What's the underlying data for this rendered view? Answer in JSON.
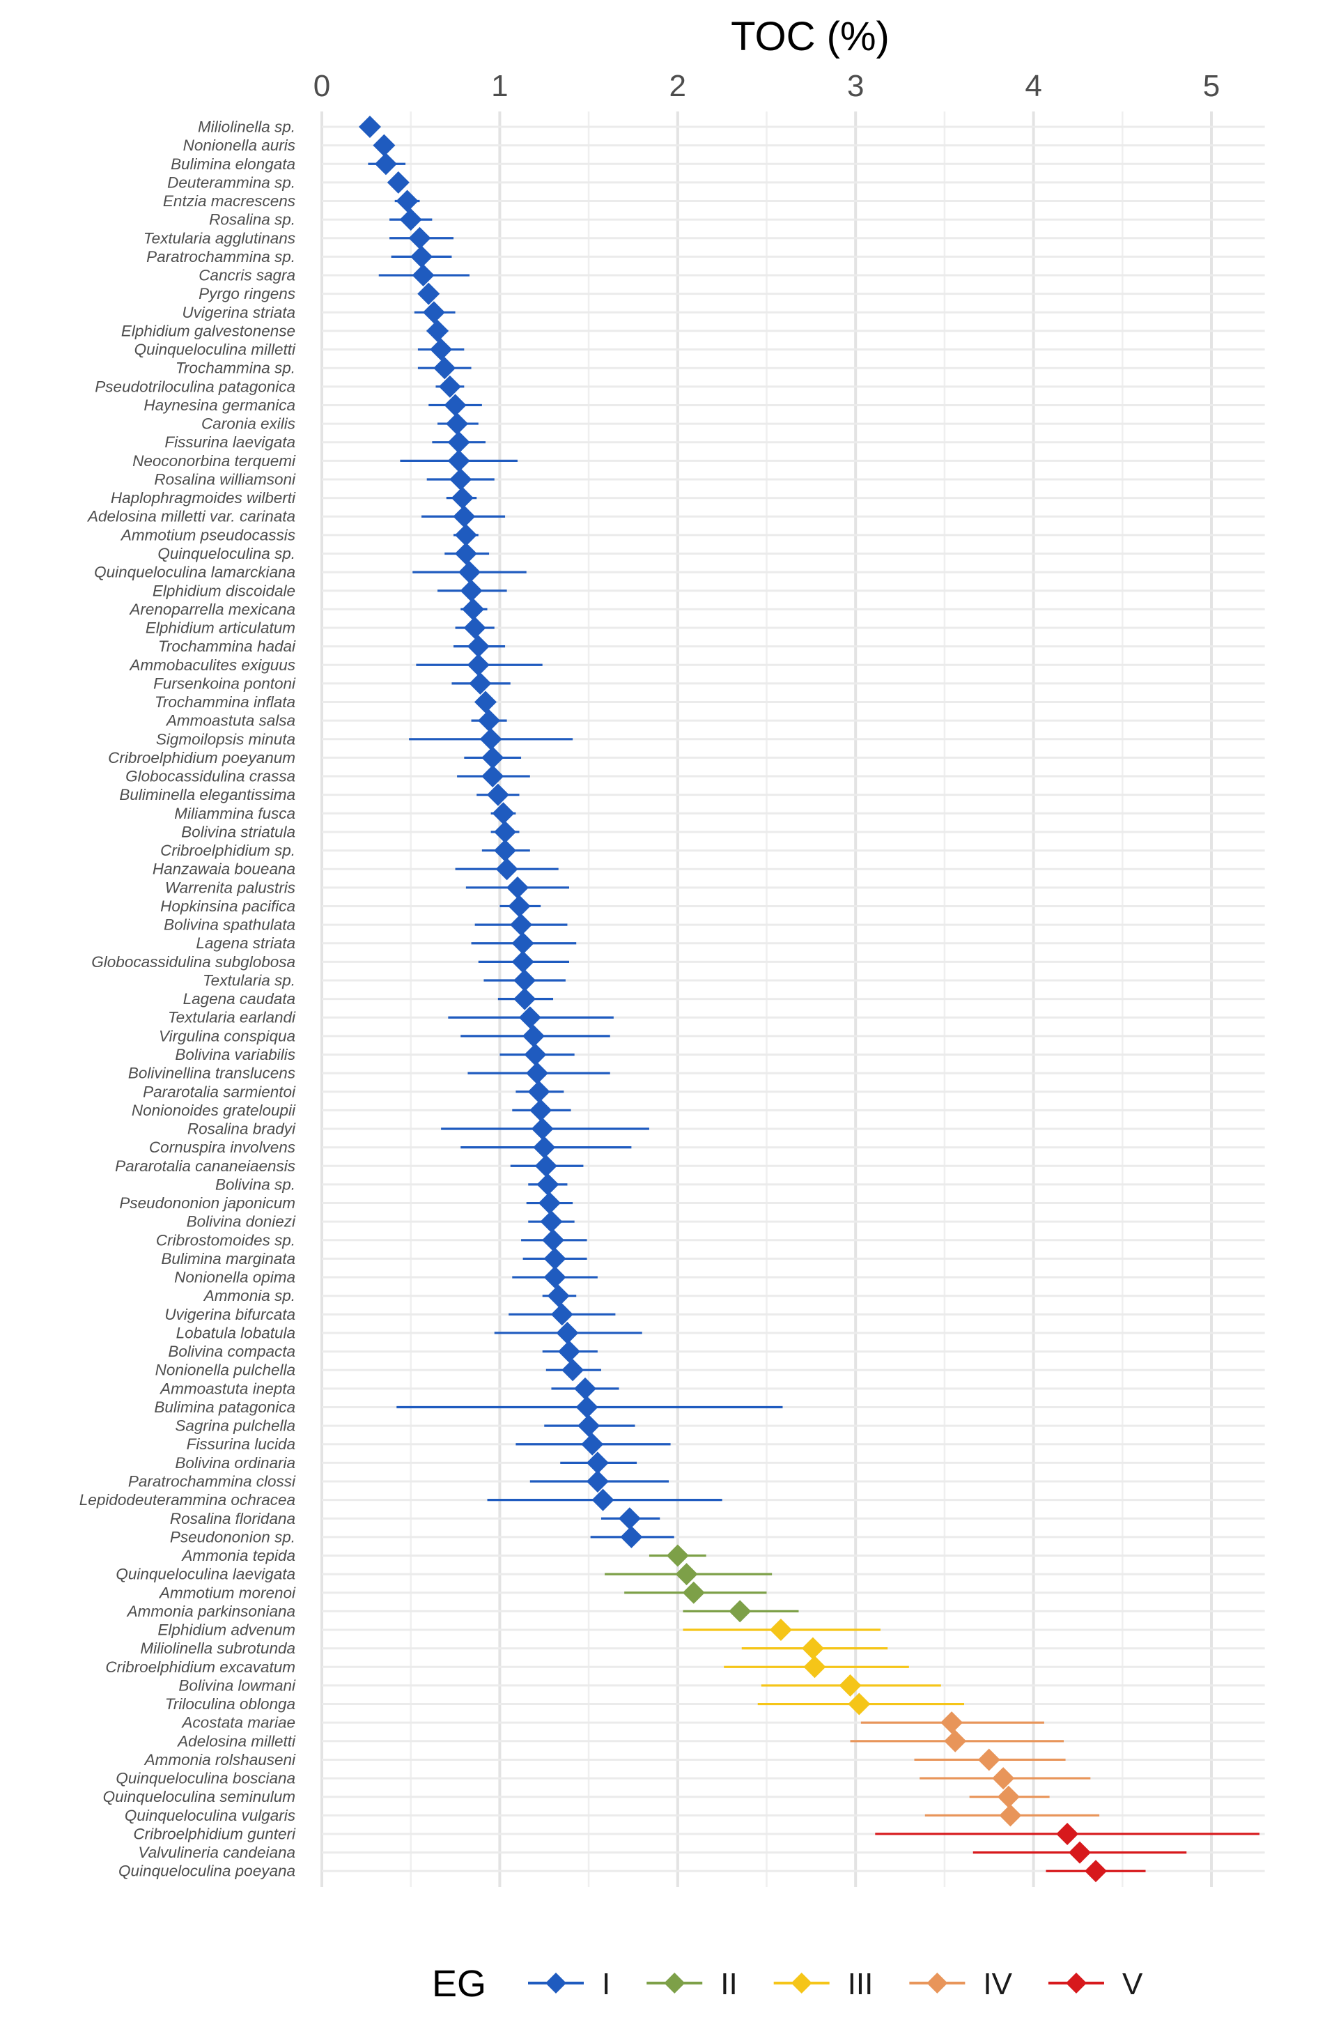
{
  "chart_data": {
    "type": "scatter",
    "title": "",
    "xlabel": "TOC (%)",
    "ylabel": "",
    "xlim": [
      0,
      5.3
    ],
    "x_ticks": [
      "0",
      "1",
      "2",
      "3",
      "4",
      "5"
    ],
    "grid": true,
    "error_bars": true,
    "legend": {
      "title": "EG",
      "placement": "bottom",
      "entries": [
        "I",
        "II",
        "III",
        "IV",
        "V"
      ]
    },
    "group_colors": {
      "I": "#1f5bbf",
      "II": "#7da048",
      "III": "#f5c518",
      "IV": "#e8955a",
      "V": "#d7191c"
    },
    "points": [
      {
        "species": "Miliolinella sp.",
        "x": 0.27,
        "lo": 0.27,
        "hi": 0.27,
        "group": "I"
      },
      {
        "species": "Nonionella auris",
        "x": 0.35,
        "lo": 0.3,
        "hi": 0.4,
        "group": "I"
      },
      {
        "species": "Bulimina elongata",
        "x": 0.36,
        "lo": 0.26,
        "hi": 0.47,
        "group": "I"
      },
      {
        "species": "Deuterammina sp.",
        "x": 0.43,
        "lo": 0.39,
        "hi": 0.47,
        "group": "I"
      },
      {
        "species": "Entzia macrescens",
        "x": 0.48,
        "lo": 0.41,
        "hi": 0.55,
        "group": "I"
      },
      {
        "species": "Rosalina sp.",
        "x": 0.5,
        "lo": 0.38,
        "hi": 0.62,
        "group": "I"
      },
      {
        "species": "Textularia agglutinans",
        "x": 0.55,
        "lo": 0.38,
        "hi": 0.74,
        "group": "I"
      },
      {
        "species": "Paratrochammina sp.",
        "x": 0.56,
        "lo": 0.39,
        "hi": 0.73,
        "group": "I"
      },
      {
        "species": "Cancris sagra",
        "x": 0.57,
        "lo": 0.32,
        "hi": 0.83,
        "group": "I"
      },
      {
        "species": "Pyrgo ringens",
        "x": 0.6,
        "lo": 0.6,
        "hi": 0.6,
        "group": "I"
      },
      {
        "species": "Uvigerina striata",
        "x": 0.63,
        "lo": 0.52,
        "hi": 0.75,
        "group": "I"
      },
      {
        "species": "Elphidium galvestonense",
        "x": 0.65,
        "lo": 0.59,
        "hi": 0.71,
        "group": "I"
      },
      {
        "species": "Quinqueloculina milletti",
        "x": 0.67,
        "lo": 0.54,
        "hi": 0.8,
        "group": "I"
      },
      {
        "species": "Trochammina sp.",
        "x": 0.69,
        "lo": 0.54,
        "hi": 0.84,
        "group": "I"
      },
      {
        "species": "Pseudotriloculina patagonica",
        "x": 0.72,
        "lo": 0.64,
        "hi": 0.8,
        "group": "I"
      },
      {
        "species": "Haynesina germanica",
        "x": 0.75,
        "lo": 0.6,
        "hi": 0.9,
        "group": "I"
      },
      {
        "species": "Caronia exilis",
        "x": 0.76,
        "lo": 0.65,
        "hi": 0.88,
        "group": "I"
      },
      {
        "species": "Fissurina laevigata",
        "x": 0.77,
        "lo": 0.62,
        "hi": 0.92,
        "group": "I"
      },
      {
        "species": "Neoconorbina terquemi",
        "x": 0.77,
        "lo": 0.44,
        "hi": 1.1,
        "group": "I"
      },
      {
        "species": "Rosalina williamsoni",
        "x": 0.78,
        "lo": 0.59,
        "hi": 0.97,
        "group": "I"
      },
      {
        "species": "Haplophragmoides wilberti",
        "x": 0.79,
        "lo": 0.7,
        "hi": 0.87,
        "group": "I"
      },
      {
        "species": "Adelosina milletti var. carinata",
        "x": 0.8,
        "lo": 0.56,
        "hi": 1.03,
        "group": "I"
      },
      {
        "species": "Ammotium pseudocassis",
        "x": 0.81,
        "lo": 0.74,
        "hi": 0.88,
        "group": "I"
      },
      {
        "species": "Quinqueloculina sp.",
        "x": 0.81,
        "lo": 0.69,
        "hi": 0.94,
        "group": "I"
      },
      {
        "species": "Quinqueloculina lamarckiana",
        "x": 0.83,
        "lo": 0.51,
        "hi": 1.15,
        "group": "I"
      },
      {
        "species": "Elphidium discoidale",
        "x": 0.84,
        "lo": 0.65,
        "hi": 1.04,
        "group": "I"
      },
      {
        "species": "Arenoparrella mexicana",
        "x": 0.85,
        "lo": 0.78,
        "hi": 0.93,
        "group": "I"
      },
      {
        "species": "Elphidium articulatum",
        "x": 0.86,
        "lo": 0.75,
        "hi": 0.97,
        "group": "I"
      },
      {
        "species": "Trochammina hadai",
        "x": 0.88,
        "lo": 0.74,
        "hi": 1.03,
        "group": "I"
      },
      {
        "species": "Ammobaculites exiguus",
        "x": 0.88,
        "lo": 0.53,
        "hi": 1.24,
        "group": "I"
      },
      {
        "species": "Fursenkoina pontoni",
        "x": 0.89,
        "lo": 0.73,
        "hi": 1.06,
        "group": "I"
      },
      {
        "species": "Trochammina inflata",
        "x": 0.92,
        "lo": 0.87,
        "hi": 0.97,
        "group": "I"
      },
      {
        "species": "Ammoastuta salsa",
        "x": 0.94,
        "lo": 0.84,
        "hi": 1.04,
        "group": "I"
      },
      {
        "species": "Sigmoilopsis minuta",
        "x": 0.95,
        "lo": 0.49,
        "hi": 1.41,
        "group": "I"
      },
      {
        "species": "Cribroelphidium poeyanum",
        "x": 0.96,
        "lo": 0.8,
        "hi": 1.12,
        "group": "I"
      },
      {
        "species": "Globocassidulina crassa",
        "x": 0.96,
        "lo": 0.76,
        "hi": 1.17,
        "group": "I"
      },
      {
        "species": "Buliminella elegantissima",
        "x": 0.99,
        "lo": 0.87,
        "hi": 1.11,
        "group": "I"
      },
      {
        "species": "Miliammina fusca",
        "x": 1.02,
        "lo": 0.95,
        "hi": 1.09,
        "group": "I"
      },
      {
        "species": "Bolivina striatula",
        "x": 1.03,
        "lo": 0.95,
        "hi": 1.11,
        "group": "I"
      },
      {
        "species": "Cribroelphidium sp.",
        "x": 1.03,
        "lo": 0.9,
        "hi": 1.17,
        "group": "I"
      },
      {
        "species": "Hanzawaia boueana",
        "x": 1.04,
        "lo": 0.75,
        "hi": 1.33,
        "group": "I"
      },
      {
        "species": "Warrenita palustris",
        "x": 1.1,
        "lo": 0.81,
        "hi": 1.39,
        "group": "I"
      },
      {
        "species": "Hopkinsina pacifica",
        "x": 1.11,
        "lo": 1.0,
        "hi": 1.23,
        "group": "I"
      },
      {
        "species": "Bolivina spathulata",
        "x": 1.12,
        "lo": 0.86,
        "hi": 1.38,
        "group": "I"
      },
      {
        "species": "Lagena striata",
        "x": 1.13,
        "lo": 0.84,
        "hi": 1.43,
        "group": "I"
      },
      {
        "species": "Globocassidulina subglobosa",
        "x": 1.13,
        "lo": 0.88,
        "hi": 1.39,
        "group": "I"
      },
      {
        "species": "Textularia sp.",
        "x": 1.14,
        "lo": 0.91,
        "hi": 1.37,
        "group": "I"
      },
      {
        "species": "Lagena caudata",
        "x": 1.14,
        "lo": 0.99,
        "hi": 1.3,
        "group": "I"
      },
      {
        "species": "Textularia earlandi",
        "x": 1.17,
        "lo": 0.71,
        "hi": 1.64,
        "group": "I"
      },
      {
        "species": "Virgulina conspiqua",
        "x": 1.19,
        "lo": 0.78,
        "hi": 1.62,
        "group": "I"
      },
      {
        "species": "Bolivina variabilis",
        "x": 1.2,
        "lo": 1.0,
        "hi": 1.42,
        "group": "I"
      },
      {
        "species": "Bolivinellina translucens",
        "x": 1.21,
        "lo": 0.82,
        "hi": 1.62,
        "group": "I"
      },
      {
        "species": "Pararotalia sarmientoi",
        "x": 1.22,
        "lo": 1.09,
        "hi": 1.36,
        "group": "I"
      },
      {
        "species": "Nonionoides grateloupii",
        "x": 1.23,
        "lo": 1.07,
        "hi": 1.4,
        "group": "I"
      },
      {
        "species": "Rosalina bradyi",
        "x": 1.24,
        "lo": 0.67,
        "hi": 1.84,
        "group": "I"
      },
      {
        "species": "Cornuspira involvens",
        "x": 1.25,
        "lo": 0.78,
        "hi": 1.74,
        "group": "I"
      },
      {
        "species": "Pararotalia cananeiaensis",
        "x": 1.26,
        "lo": 1.06,
        "hi": 1.47,
        "group": "I"
      },
      {
        "species": "Bolivina sp.",
        "x": 1.27,
        "lo": 1.16,
        "hi": 1.38,
        "group": "I"
      },
      {
        "species": "Pseudononion japonicum",
        "x": 1.28,
        "lo": 1.15,
        "hi": 1.41,
        "group": "I"
      },
      {
        "species": "Bolivina doniezi",
        "x": 1.29,
        "lo": 1.16,
        "hi": 1.42,
        "group": "I"
      },
      {
        "species": "Cribrostomoides sp.",
        "x": 1.3,
        "lo": 1.12,
        "hi": 1.49,
        "group": "I"
      },
      {
        "species": "Bulimina marginata",
        "x": 1.31,
        "lo": 1.13,
        "hi": 1.49,
        "group": "I"
      },
      {
        "species": "Nonionella opima",
        "x": 1.31,
        "lo": 1.07,
        "hi": 1.55,
        "group": "I"
      },
      {
        "species": "Ammonia sp.",
        "x": 1.33,
        "lo": 1.24,
        "hi": 1.43,
        "group": "I"
      },
      {
        "species": "Uvigerina bifurcata",
        "x": 1.35,
        "lo": 1.05,
        "hi": 1.65,
        "group": "I"
      },
      {
        "species": "Lobatula lobatula",
        "x": 1.38,
        "lo": 0.97,
        "hi": 1.8,
        "group": "I"
      },
      {
        "species": "Bolivina compacta",
        "x": 1.39,
        "lo": 1.24,
        "hi": 1.55,
        "group": "I"
      },
      {
        "species": "Nonionella pulchella",
        "x": 1.41,
        "lo": 1.26,
        "hi": 1.57,
        "group": "I"
      },
      {
        "species": "Ammoastuta inepta",
        "x": 1.48,
        "lo": 1.29,
        "hi": 1.67,
        "group": "I"
      },
      {
        "species": "Bulimina patagonica",
        "x": 1.49,
        "lo": 0.42,
        "hi": 2.59,
        "group": "I"
      },
      {
        "species": "Sagrina pulchella",
        "x": 1.5,
        "lo": 1.25,
        "hi": 1.76,
        "group": "I"
      },
      {
        "species": "Fissurina lucida",
        "x": 1.52,
        "lo": 1.09,
        "hi": 1.96,
        "group": "I"
      },
      {
        "species": "Bolivina ordinaria",
        "x": 1.55,
        "lo": 1.34,
        "hi": 1.77,
        "group": "I"
      },
      {
        "species": "Paratrochammina clossi",
        "x": 1.55,
        "lo": 1.17,
        "hi": 1.95,
        "group": "I"
      },
      {
        "species": "Lepidodeuterammina ochracea",
        "x": 1.58,
        "lo": 0.93,
        "hi": 2.25,
        "group": "I"
      },
      {
        "species": "Rosalina floridana",
        "x": 1.73,
        "lo": 1.57,
        "hi": 1.9,
        "group": "I"
      },
      {
        "species": "Pseudononion sp.",
        "x": 1.74,
        "lo": 1.51,
        "hi": 1.98,
        "group": "I"
      },
      {
        "species": "Ammonia tepida",
        "x": 2.0,
        "lo": 1.84,
        "hi": 2.16,
        "group": "II"
      },
      {
        "species": "Quinqueloculina laevigata",
        "x": 2.05,
        "lo": 1.59,
        "hi": 2.53,
        "group": "II"
      },
      {
        "species": "Ammotium morenoi",
        "x": 2.09,
        "lo": 1.7,
        "hi": 2.5,
        "group": "II"
      },
      {
        "species": "Ammonia parkinsoniana",
        "x": 2.35,
        "lo": 2.03,
        "hi": 2.68,
        "group": "II"
      },
      {
        "species": "Elphidium advenum",
        "x": 2.58,
        "lo": 2.03,
        "hi": 3.14,
        "group": "III"
      },
      {
        "species": "Miliolinella subrotunda",
        "x": 2.76,
        "lo": 2.36,
        "hi": 3.18,
        "group": "III"
      },
      {
        "species": "Cribroelphidium excavatum",
        "x": 2.77,
        "lo": 2.26,
        "hi": 3.3,
        "group": "III"
      },
      {
        "species": "Bolivina lowmani",
        "x": 2.97,
        "lo": 2.47,
        "hi": 3.48,
        "group": "III"
      },
      {
        "species": "Triloculina oblonga",
        "x": 3.02,
        "lo": 2.45,
        "hi": 3.61,
        "group": "III"
      },
      {
        "species": "Acostata mariae",
        "x": 3.54,
        "lo": 3.03,
        "hi": 4.06,
        "group": "IV"
      },
      {
        "species": "Adelosina milletti",
        "x": 3.56,
        "lo": 2.97,
        "hi": 4.17,
        "group": "IV"
      },
      {
        "species": "Ammonia rolshauseni",
        "x": 3.75,
        "lo": 3.33,
        "hi": 4.18,
        "group": "IV"
      },
      {
        "species": "Quinqueloculina bosciana",
        "x": 3.83,
        "lo": 3.36,
        "hi": 4.32,
        "group": "IV"
      },
      {
        "species": "Quinqueloculina seminulum",
        "x": 3.86,
        "lo": 3.64,
        "hi": 4.09,
        "group": "IV"
      },
      {
        "species": "Quinqueloculina vulgaris",
        "x": 3.87,
        "lo": 3.39,
        "hi": 4.37,
        "group": "IV"
      },
      {
        "species": "Cribroelphidium gunteri",
        "x": 4.19,
        "lo": 3.11,
        "hi": 5.27,
        "group": "V"
      },
      {
        "species": "Valvulineria candeiana",
        "x": 4.26,
        "lo": 3.66,
        "hi": 4.86,
        "group": "V"
      },
      {
        "species": "Quinqueloculina poeyana",
        "x": 4.35,
        "lo": 4.07,
        "hi": 4.63,
        "group": "V"
      }
    ]
  }
}
